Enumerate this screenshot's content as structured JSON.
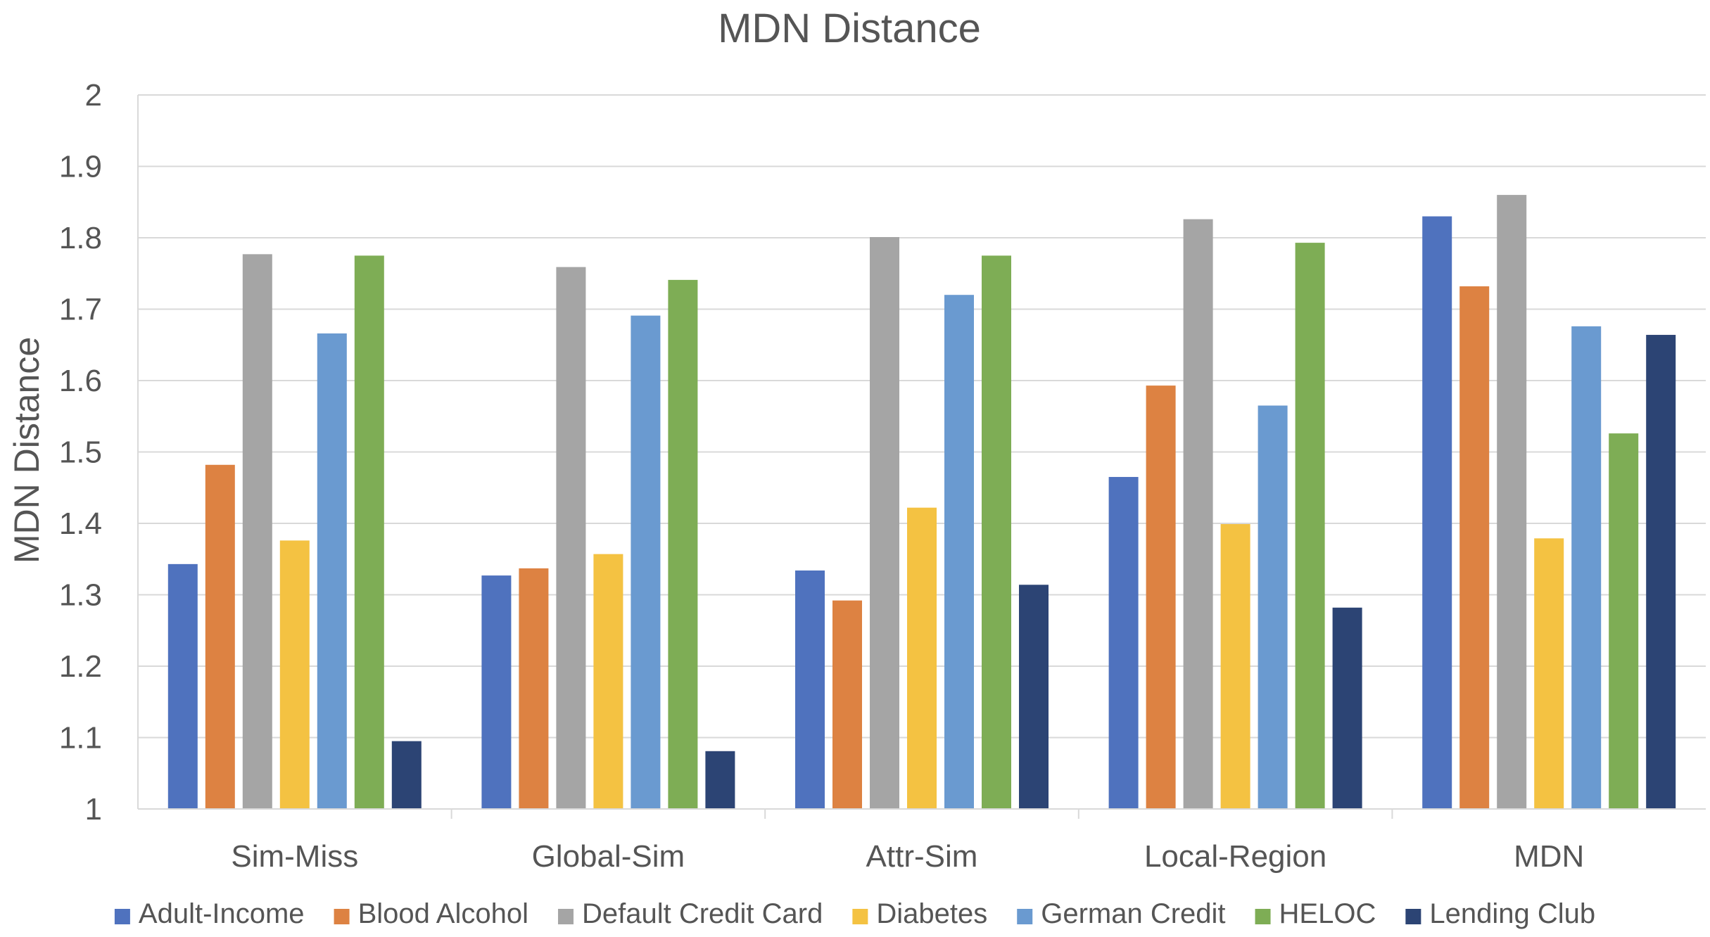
{
  "chart_data": {
    "type": "bar",
    "title": "MDN Distance",
    "xlabel": "",
    "ylabel": "MDN Distance",
    "ylim": [
      1,
      2
    ],
    "yticks": [
      "1",
      "1.1",
      "1.2",
      "1.3",
      "1.4",
      "1.5",
      "1.6",
      "1.7",
      "1.8",
      "1.9",
      "2"
    ],
    "grid": true,
    "legend_position": "bottom",
    "categories": [
      "Sim-Miss",
      "Global-Sim",
      "Attr-Sim",
      "Local-Region",
      "MDN"
    ],
    "series": [
      {
        "name": "Adult-Income",
        "color": "#4f72be",
        "values": [
          1.343,
          1.327,
          1.334,
          1.465,
          1.83
        ]
      },
      {
        "name": "Blood Alcohol",
        "color": "#dd8242",
        "values": [
          1.482,
          1.337,
          1.292,
          1.593,
          1.732
        ]
      },
      {
        "name": "Default Credit Card",
        "color": "#a5a5a5",
        "values": [
          1.777,
          1.759,
          1.801,
          1.826,
          1.86
        ]
      },
      {
        "name": "Diabetes",
        "color": "#f4c242",
        "values": [
          1.376,
          1.357,
          1.422,
          1.399,
          1.379
        ]
      },
      {
        "name": "German Credit",
        "color": "#6a9ad0",
        "values": [
          1.666,
          1.691,
          1.72,
          1.565,
          1.676
        ]
      },
      {
        "name": "HELOC",
        "color": "#7ead55",
        "values": [
          1.775,
          1.741,
          1.775,
          1.793,
          1.526
        ]
      },
      {
        "name": "Lending Club",
        "color": "#2c4474",
        "values": [
          1.095,
          1.081,
          1.314,
          1.282,
          1.664
        ]
      }
    ]
  }
}
